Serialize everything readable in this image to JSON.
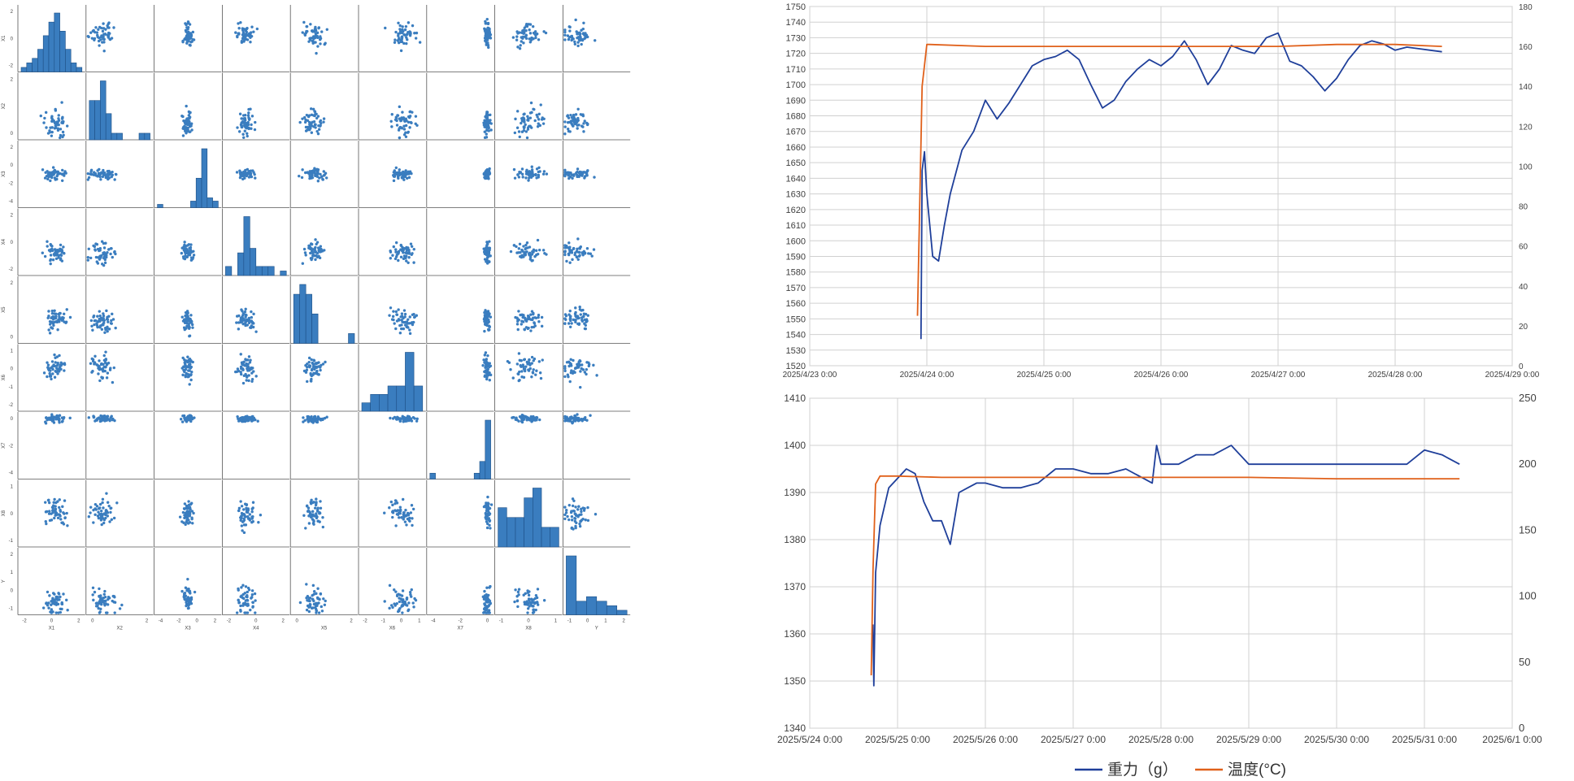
{
  "chart_data": [
    {
      "type": "scatter",
      "subtype": "pair-plot",
      "title": "",
      "variables": [
        "X1",
        "X2",
        "X3",
        "X4",
        "X5",
        "X6",
        "X7",
        "X8",
        "Y"
      ],
      "axis_tick_labels": {
        "X1": [
          "-2",
          "0",
          "2"
        ],
        "X2": [
          "0",
          "2"
        ],
        "X3": [
          "-4",
          "-2",
          "0",
          "2"
        ],
        "X4": [
          "-2",
          "0",
          "2"
        ],
        "X5": [
          "0",
          "2"
        ],
        "X6": [
          "-2",
          "-1",
          "0",
          "1"
        ],
        "X7": [
          "-4",
          "-2",
          "0"
        ],
        "X8": [
          "-1",
          "0",
          "1"
        ],
        "Y": [
          "-1",
          "0",
          "1",
          "2"
        ]
      },
      "diagonal": "histogram",
      "histograms": [
        [
          1,
          2,
          3,
          5,
          8,
          11,
          13,
          9,
          5,
          2,
          1
        ],
        [
          6,
          6,
          9,
          4,
          1,
          1,
          0,
          0,
          0,
          1,
          1
        ],
        [
          1,
          0,
          0,
          0,
          0,
          0,
          2,
          9,
          18,
          3,
          2
        ],
        [
          2,
          0,
          5,
          13,
          6,
          2,
          2,
          2,
          0,
          1
        ],
        [
          5,
          6,
          5,
          3,
          0,
          0,
          0,
          0,
          0,
          1
        ],
        [
          1,
          2,
          2,
          3,
          3,
          7,
          3
        ],
        [
          1,
          0,
          0,
          0,
          0,
          0,
          0,
          0,
          1,
          3,
          10
        ],
        [
          4,
          3,
          3,
          5,
          6,
          2,
          2
        ],
        [
          13,
          3,
          4,
          3,
          2,
          1
        ]
      ],
      "point_color": "#3a7dbf",
      "bar_color": "#3a7dbf"
    },
    {
      "type": "line",
      "title": "",
      "x_tick_labels": [
        "2025/4/23 0:00",
        "2025/4/24 0:00",
        "2025/4/25 0:00",
        "2025/4/26 0:00",
        "2025/4/27 0:00",
        "2025/4/28 0:00",
        "2025/4/29 0:00"
      ],
      "xlim": [
        0,
        6
      ],
      "ylim_left": [
        1520,
        1750
      ],
      "yticks_left": [
        "1520",
        "1530",
        "1540",
        "1550",
        "1560",
        "1570",
        "1580",
        "1590",
        "1600",
        "1610",
        "1620",
        "1630",
        "1640",
        "1650",
        "1660",
        "1670",
        "1680",
        "1690",
        "1700",
        "1710",
        "1720",
        "1730",
        "1740",
        "1750"
      ],
      "ylim_right": [
        0,
        180
      ],
      "yticks_right": [
        "0",
        "20",
        "40",
        "60",
        "80",
        "100",
        "120",
        "140",
        "160",
        "180"
      ],
      "series": [
        {
          "name": "重力（g）",
          "axis": "left",
          "color": "#1f3f9a",
          "x": [
            0.95,
            0.96,
            0.98,
            1.0,
            1.05,
            1.1,
            1.15,
            1.2,
            1.3,
            1.4,
            1.5,
            1.6,
            1.7,
            1.8,
            1.9,
            2.0,
            2.1,
            2.2,
            2.3,
            2.4,
            2.5,
            2.6,
            2.7,
            2.8,
            2.9,
            3.0,
            3.1,
            3.2,
            3.3,
            3.4,
            3.5,
            3.6,
            3.7,
            3.8,
            3.9,
            4.0,
            4.1,
            4.2,
            4.3,
            4.4,
            4.5,
            4.6,
            4.7,
            4.8,
            4.9,
            5.0,
            5.1,
            5.2,
            5.3,
            5.4
          ],
          "y": [
            1537,
            1645,
            1657,
            1630,
            1590,
            1587,
            1610,
            1630,
            1658,
            1670,
            1690,
            1678,
            1688,
            1700,
            1712,
            1716,
            1718,
            1722,
            1716,
            1700,
            1685,
            1690,
            1702,
            1710,
            1716,
            1712,
            1718,
            1728,
            1716,
            1700,
            1710,
            1725,
            1722,
            1720,
            1730,
            1733,
            1715,
            1712,
            1705,
            1696,
            1704,
            1716,
            1725,
            1728,
            1726,
            1722,
            1724,
            1723,
            1722,
            1721
          ]
        },
        {
          "name": "温度(°C)",
          "axis": "right",
          "color": "#e0601a",
          "x": [
            0.92,
            0.96,
            1.0,
            1.02,
            1.5,
            2.0,
            2.5,
            3.0,
            3.5,
            4.0,
            4.5,
            5.0,
            5.4
          ],
          "y": [
            25,
            140,
            161,
            161,
            160,
            160,
            160,
            160,
            160,
            160,
            161,
            161,
            160
          ]
        }
      ]
    },
    {
      "type": "line",
      "title": "",
      "x_tick_labels": [
        "2025/5/24 0:00",
        "2025/5/25 0:00",
        "2025/5/26 0:00",
        "2025/5/27 0:00",
        "2025/5/28 0:00",
        "2025/5/29 0:00",
        "2025/5/30 0:00",
        "2025/5/31 0:00",
        "2025/6/1 0:00"
      ],
      "xlim": [
        0,
        8
      ],
      "ylim_left": [
        1340,
        1410
      ],
      "yticks_left": [
        "1340",
        "1350",
        "1360",
        "1370",
        "1380",
        "1390",
        "1400",
        "1410"
      ],
      "ylim_right": [
        0,
        250
      ],
      "yticks_right": [
        "0",
        "50",
        "100",
        "150",
        "200",
        "250"
      ],
      "series": [
        {
          "name": "重力（g）",
          "axis": "left",
          "color": "#1f3f9a",
          "x": [
            0.72,
            0.73,
            0.75,
            0.8,
            0.9,
            1.0,
            1.1,
            1.2,
            1.3,
            1.4,
            1.5,
            1.6,
            1.7,
            1.8,
            1.9,
            2.0,
            2.2,
            2.4,
            2.6,
            2.8,
            3.0,
            3.2,
            3.4,
            3.6,
            3.8,
            3.9,
            3.95,
            4.0,
            4.2,
            4.4,
            4.6,
            4.8,
            5.0,
            5.2,
            5.4,
            5.6,
            5.8,
            6.0,
            6.2,
            6.4,
            6.6,
            6.8,
            7.0,
            7.2,
            7.3,
            7.4
          ],
          "y": [
            1362,
            1349,
            1373,
            1383,
            1391,
            1393,
            1395,
            1394,
            1388,
            1384,
            1384,
            1379,
            1390,
            1391,
            1392,
            1392,
            1391,
            1391,
            1392,
            1395,
            1395,
            1394,
            1394,
            1395,
            1393,
            1392,
            1400,
            1396,
            1396,
            1398,
            1398,
            1400,
            1396,
            1396,
            1396,
            1396,
            1396,
            1396,
            1396,
            1396,
            1396,
            1396,
            1399,
            1398,
            1397,
            1396
          ]
        },
        {
          "name": "温度(°C)",
          "axis": "right",
          "color": "#e0601a",
          "x": [
            0.7,
            0.72,
            0.75,
            0.8,
            1.0,
            1.5,
            2.0,
            3.0,
            4.0,
            5.0,
            6.0,
            7.0,
            7.4
          ],
          "y": [
            40,
            120,
            185,
            191,
            191,
            190,
            190,
            190,
            190,
            190,
            189,
            189,
            189
          ]
        }
      ]
    }
  ],
  "legend": [
    {
      "label": "重力（g）",
      "color": "#1f3f9a"
    },
    {
      "label": "温度(°C)",
      "color": "#e0601a"
    }
  ]
}
